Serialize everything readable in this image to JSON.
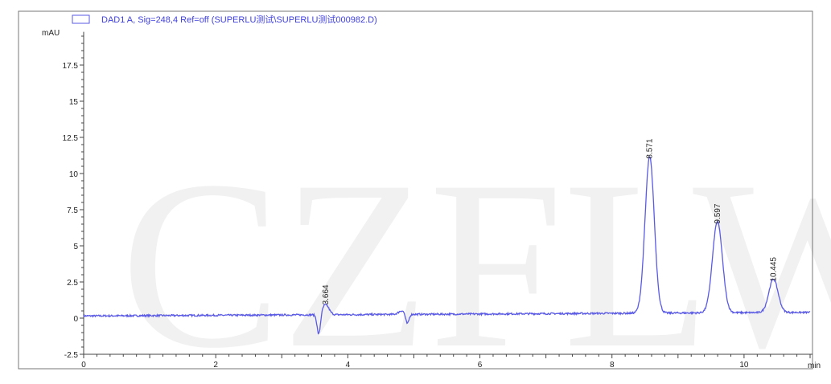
{
  "chart_data": {
    "type": "line",
    "legend": "DAD1 A, Sig=248,4 Ref=off (SUPERLU测试\\SUPERLU测试000982.D)",
    "legend_placement": "top-left",
    "xlabel": "min",
    "ylabel": "mAU",
    "xlim": [
      0,
      11
    ],
    "ylim": [
      -2.5,
      19.8
    ],
    "x_ticks": [
      0,
      2,
      4,
      6,
      8,
      10
    ],
    "x_tick_labels": [
      "0",
      "2",
      "4",
      "6",
      "8",
      "10"
    ],
    "y_ticks": [
      -2.5,
      0,
      2.5,
      5,
      7.5,
      10,
      12.5,
      15,
      17.5
    ],
    "y_tick_labels": [
      "-2.5",
      "0",
      "2.5",
      "5",
      "7.5",
      "10",
      "12.5",
      "15",
      "17.5"
    ],
    "grid": false,
    "line_color": "#5a5ae6",
    "baseline": {
      "start": 0.15,
      "end": 0.4
    },
    "peaks": [
      {
        "rt": 3.664,
        "label": "3.664",
        "height": 0.7
      },
      {
        "rt": 8.571,
        "label": "8.571",
        "height": 10.8
      },
      {
        "rt": 9.597,
        "label": "9.597",
        "height": 6.3
      },
      {
        "rt": 10.445,
        "label": "10.445",
        "height": 2.3
      }
    ],
    "disturbances": [
      {
        "time": 3.56,
        "min": -1.1
      },
      {
        "time": 4.82,
        "max": 0.6
      },
      {
        "time": 4.9,
        "min": -0.4
      }
    ]
  }
}
